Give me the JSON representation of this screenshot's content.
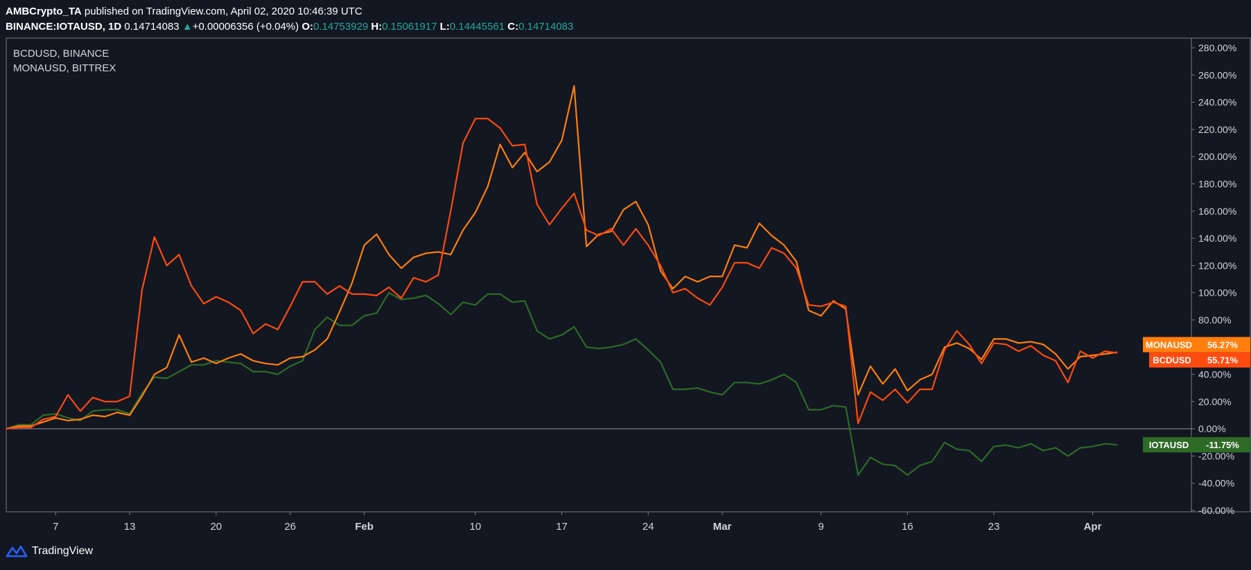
{
  "header": {
    "author": "AMBCrypto_TA",
    "published_text": "published on TradingView.com, April 02, 2020 10:46:39 UTC",
    "symbol": "BINANCE:IOTAUSD, 1D",
    "price": "0.14714083",
    "change_arrow": "▲",
    "change": "+0.00006356 (+0.04%)",
    "o_label": "O:",
    "o_value": "0.14753929",
    "h_label": "H:",
    "h_value": "0.15061917",
    "l_label": "L:",
    "l_value": "0.14445561",
    "c_label": "C:",
    "c_value": "0.14714083"
  },
  "legend": [
    "BCDUSD, BINANCE",
    "MONAUSD, BITTREX"
  ],
  "footer": {
    "brand": "TradingView",
    "logo_icon": "tradingview-logo-icon"
  },
  "colors": {
    "background": "#131722",
    "axis": "#787b86",
    "text": "#d1d4dc",
    "zero_line": "#b2b5be",
    "BCDUSD": "#ff4a10",
    "MONAUSD": "#ff7f0e",
    "IOTAUSD": "#2e6b26"
  },
  "chart_data": {
    "type": "line",
    "x_ticks": [
      {
        "day": 4,
        "label": "7"
      },
      {
        "day": 10,
        "label": "13"
      },
      {
        "day": 17,
        "label": "20"
      },
      {
        "day": 23,
        "label": "26"
      },
      {
        "day": 29,
        "label": "Feb"
      },
      {
        "day": 38,
        "label": "10"
      },
      {
        "day": 45,
        "label": "17"
      },
      {
        "day": 52,
        "label": "24"
      },
      {
        "day": 58,
        "label": "Mar"
      },
      {
        "day": 66,
        "label": "9"
      },
      {
        "day": 73,
        "label": "16"
      },
      {
        "day": 80,
        "label": "23"
      },
      {
        "day": 88,
        "label": "Apr"
      }
    ],
    "xlim": [
      0,
      96
    ],
    "ylim": [
      -60,
      280
    ],
    "y_ticks": [
      "280.00%",
      "260.00%",
      "240.00%",
      "220.00%",
      "200.00%",
      "180.00%",
      "160.00%",
      "140.00%",
      "120.00%",
      "100.00%",
      "80.00%",
      "60.00%",
      "40.00%",
      "20.00%",
      "0.00%",
      "-20.00%",
      "-40.00%",
      "-60.00%"
    ],
    "y_tick_values": [
      280,
      260,
      240,
      220,
      200,
      180,
      160,
      140,
      120,
      100,
      80,
      60,
      40,
      20,
      0,
      -20,
      -40,
      -60
    ],
    "baseline": 0,
    "series": [
      {
        "name": "BCDUSD",
        "badge": "55.71%",
        "last": 55.71,
        "values": [
          0,
          1,
          1,
          7,
          9,
          25,
          13,
          23,
          20,
          20,
          24,
          102,
          141,
          120,
          128,
          105,
          92,
          97,
          93,
          87,
          70,
          77,
          73,
          90,
          108,
          108,
          99,
          105,
          99,
          99,
          98,
          104,
          96,
          111,
          108,
          113,
          160,
          210,
          228,
          228,
          221,
          208,
          209,
          165,
          150,
          162,
          173,
          146,
          142,
          147,
          135,
          147,
          135,
          120,
          100,
          103,
          96,
          91,
          104,
          122,
          122,
          118,
          133,
          129,
          118,
          91,
          90,
          93,
          90,
          4,
          27,
          21,
          29,
          19,
          29,
          29,
          58,
          72,
          62,
          48,
          63,
          62,
          57,
          61,
          54,
          50,
          34,
          57,
          52,
          57,
          55.7
        ]
      },
      {
        "name": "MONAUSD",
        "badge": "56.27%",
        "last": 56.27,
        "values": [
          0,
          2,
          2,
          5,
          8,
          6,
          7,
          10,
          9,
          12,
          10,
          24,
          40,
          45,
          69,
          49,
          52,
          48,
          52,
          55,
          50,
          48,
          47,
          52,
          53,
          58,
          66,
          86,
          107,
          135,
          143,
          128,
          118,
          126,
          129,
          130,
          128,
          146,
          159,
          178,
          209,
          192,
          203,
          189,
          196,
          212,
          252,
          134,
          143,
          145,
          161,
          167,
          150,
          116,
          103,
          112,
          108,
          112,
          112,
          135,
          133,
          151,
          142,
          135,
          123,
          87,
          83,
          94,
          88,
          25,
          46,
          33,
          44,
          28,
          36,
          40,
          60,
          63,
          59,
          51,
          66,
          66,
          63,
          64,
          62,
          55,
          44,
          53,
          54,
          55,
          56.3
        ]
      },
      {
        "name": "IOTAUSD",
        "badge": "-11.75%",
        "last": -11.75,
        "values": [
          0,
          3,
          3,
          10,
          11,
          8,
          6,
          13,
          14,
          14,
          11,
          26,
          38,
          37,
          42,
          47,
          47,
          50,
          49,
          48,
          42,
          42,
          40,
          46,
          50,
          73,
          82,
          76,
          76,
          83,
          85,
          100,
          95,
          96,
          98,
          92,
          84,
          93,
          91,
          99,
          99,
          93,
          94,
          72,
          66,
          69,
          75,
          60,
          59,
          60,
          62,
          66,
          58,
          49,
          29,
          29,
          30,
          27,
          25,
          34,
          34,
          33,
          36,
          40,
          34,
          14,
          14,
          17,
          16,
          -34,
          -21,
          -26,
          -27,
          -34,
          -27,
          -24,
          -10,
          -15,
          -16,
          -24,
          -13,
          -12,
          -14,
          -11,
          -16,
          -14,
          -20,
          -14,
          -13,
          -11,
          -11.75
        ]
      }
    ]
  }
}
